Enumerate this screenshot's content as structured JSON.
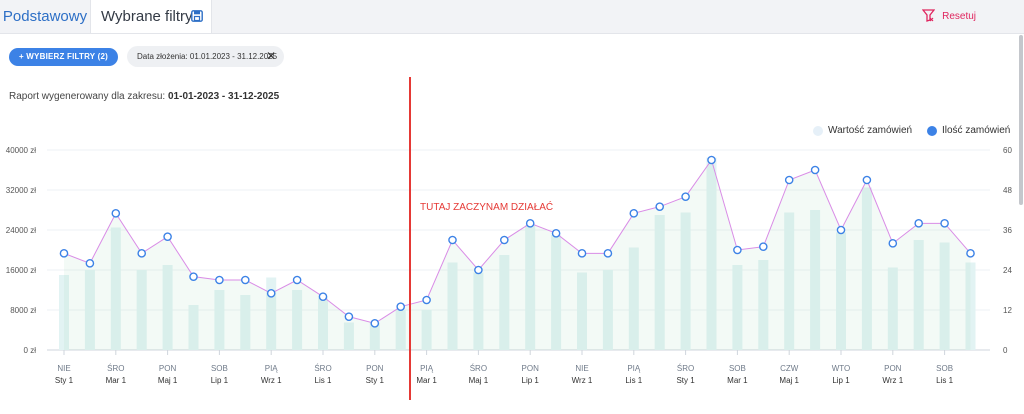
{
  "tabs": [
    {
      "label": "Podstawowy"
    },
    {
      "label": "Wybrane filtry"
    }
  ],
  "icons": {
    "save": "save-icon",
    "reset": "filter-reset-icon",
    "close": "close-icon"
  },
  "reset_label": "Resetuj",
  "filter_button_label": "+ WYBIERZ FILTRY (2)",
  "filter_chip": {
    "label": "Data złożenia: 01.01.2023 - 31.12.2025",
    "close": "✕"
  },
  "report": {
    "prefix": "Raport wygenerowany dla zakresu:",
    "range": "01-01-2023 - 31-12-2025"
  },
  "annotation": "TUTAJ ZACZYNAM DZIAŁAĆ",
  "colors": {
    "accent": "#3c82e6",
    "bars": "#e2f3f3",
    "line": "#d98ce6",
    "marker": "#e53935",
    "reset": "#e0245e"
  },
  "chart_data": {
    "type": "bar",
    "series": [
      {
        "name": "Wartość zamówień",
        "type": "bar",
        "axis": "left",
        "values": [
          15000,
          16000,
          24500,
          16000,
          17000,
          9000,
          12000,
          11000,
          14500,
          12000,
          10500,
          5500,
          5500,
          8000,
          8000,
          17500,
          15500,
          19000,
          25000,
          23000,
          15500,
          16000,
          20500,
          27000,
          27500,
          38500,
          17000,
          18000,
          27500,
          28000,
          23500,
          32500,
          16500,
          22000,
          21500,
          17500
        ]
      },
      {
        "name": "Ilość zamówień",
        "type": "line",
        "axis": "right",
        "values": [
          29,
          26,
          41,
          29,
          34,
          22,
          21,
          21,
          17,
          21,
          16,
          10,
          8,
          13,
          15,
          33,
          24,
          33,
          38,
          35,
          29,
          29,
          41,
          43,
          46,
          57,
          30,
          31,
          51,
          54,
          36,
          51,
          32,
          38,
          38,
          29
        ]
      }
    ],
    "x_ticks": [
      {
        "day": "NIE",
        "month": "Sty 1"
      },
      {
        "day": "ŚRO",
        "month": "Mar 1"
      },
      {
        "day": "PON",
        "month": "Maj 1"
      },
      {
        "day": "SOB",
        "month": "Lip 1"
      },
      {
        "day": "PIĄ",
        "month": "Wrz 1"
      },
      {
        "day": "ŚRO",
        "month": "Lis 1"
      },
      {
        "day": "PON",
        "month": "Sty 1"
      },
      {
        "day": "PIĄ",
        "month": "Mar 1"
      },
      {
        "day": "ŚRO",
        "month": "Maj 1"
      },
      {
        "day": "PON",
        "month": "Lip 1"
      },
      {
        "day": "NIE",
        "month": "Wrz 1"
      },
      {
        "day": "PIĄ",
        "month": "Lis 1"
      },
      {
        "day": "ŚRO",
        "month": "Sty 1"
      },
      {
        "day": "SOB",
        "month": "Mar 1"
      },
      {
        "day": "CZW",
        "month": "Maj 1"
      },
      {
        "day": "WTO",
        "month": "Lip 1"
      },
      {
        "day": "PON",
        "month": "Wrz 1"
      },
      {
        "day": "SOB",
        "month": "Lis 1"
      }
    ],
    "y_left_ticks": [
      "0 zł",
      "8000 zł",
      "16000 zł",
      "24000 zł",
      "32000 zł",
      "40000 zł"
    ],
    "y_right_ticks": [
      "0",
      "12",
      "24",
      "36",
      "48",
      "60"
    ],
    "ylim_left": [
      0,
      40000
    ],
    "ylim_right": [
      0,
      60
    ],
    "grid": true,
    "legend_position": "top-right"
  }
}
